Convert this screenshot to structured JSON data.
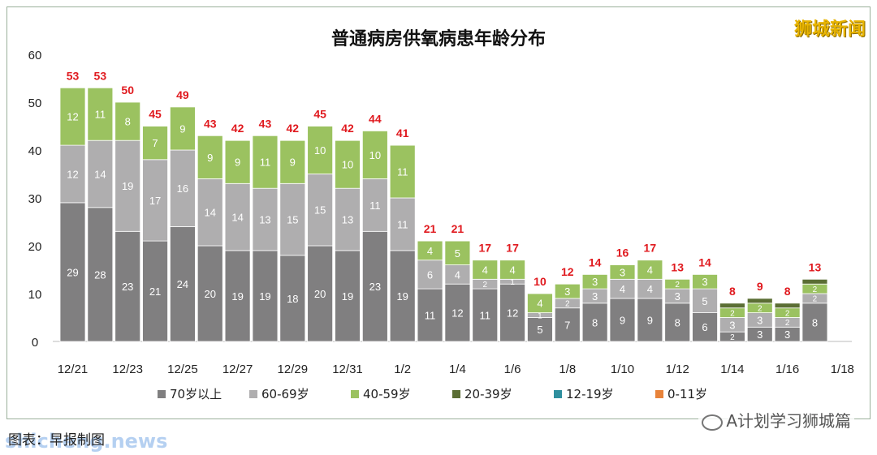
{
  "watermark": "狮城新闻",
  "caption": "图表：早报制图",
  "wechat_label": "A计划学习狮城篇",
  "site_watermark": "shicheng.news",
  "chart_data": {
    "type": "bar",
    "stacked": true,
    "title": "普通病房供氧病患年龄分布",
    "ylim": [
      0,
      60
    ],
    "yticks": [
      0,
      10,
      20,
      30,
      40,
      50,
      60
    ],
    "x_tick_labels": [
      "12/21",
      "12/23",
      "12/25",
      "12/27",
      "12/29",
      "12/31",
      "1/2",
      "1/4",
      "1/6",
      "1/8",
      "1/10",
      "1/12",
      "1/14",
      "1/16",
      "1/18"
    ],
    "categories": [
      "12/21",
      "12/22",
      "12/23",
      "12/24",
      "12/25",
      "12/26",
      "12/27",
      "12/28",
      "12/29",
      "12/30",
      "12/31",
      "1/1",
      "1/2",
      "1/3",
      "1/4",
      "1/5",
      "1/6",
      "1/7",
      "1/8",
      "1/9",
      "1/10",
      "1/11",
      "1/12",
      "1/13",
      "1/14",
      "1/15",
      "1/16",
      "1/17"
    ],
    "totals": [
      53,
      53,
      50,
      45,
      49,
      43,
      42,
      43,
      42,
      45,
      42,
      44,
      41,
      21,
      21,
      17,
      17,
      10,
      12,
      14,
      16,
      17,
      13,
      14,
      8,
      9,
      8,
      13
    ],
    "legend_position": "bottom",
    "series": [
      {
        "name": "70岁以上",
        "color": "#807f80",
        "values": [
          29,
          28,
          23,
          21,
          24,
          20,
          19,
          19,
          18,
          20,
          19,
          23,
          19,
          11,
          12,
          11,
          12,
          5,
          7,
          8,
          9,
          9,
          8,
          6,
          2,
          3,
          3,
          8
        ]
      },
      {
        "name": "60-69岁",
        "color": "#afaeaf",
        "values": [
          12,
          14,
          19,
          17,
          16,
          14,
          14,
          13,
          15,
          15,
          13,
          11,
          11,
          6,
          4,
          2,
          1,
          1,
          2,
          3,
          4,
          4,
          3,
          5,
          3,
          3,
          2,
          2
        ]
      },
      {
        "name": "40-59岁",
        "color": "#9bc260",
        "values": [
          12,
          11,
          8,
          7,
          9,
          9,
          9,
          11,
          9,
          10,
          10,
          10,
          11,
          4,
          5,
          4,
          4,
          4,
          3,
          3,
          3,
          4,
          2,
          3,
          2,
          2,
          2,
          2
        ]
      },
      {
        "name": "20-39岁",
        "color": "#5b6e34",
        "values": [
          0,
          0,
          0,
          0,
          0,
          0,
          0,
          0,
          0,
          0,
          0,
          0,
          0,
          0,
          0,
          0,
          0,
          0,
          0,
          0,
          0,
          0,
          0,
          0,
          1,
          1,
          1,
          1
        ]
      },
      {
        "name": "12-19岁",
        "color": "#2f8f9e",
        "values": [
          0,
          0,
          0,
          0,
          0,
          0,
          0,
          0,
          0,
          0,
          0,
          0,
          0,
          0,
          0,
          0,
          0,
          0,
          0,
          0,
          0,
          0,
          0,
          0,
          0,
          0,
          0,
          0
        ]
      },
      {
        "name": "0-11岁",
        "color": "#e8833a",
        "values": [
          0,
          0,
          0,
          0,
          0,
          0,
          0,
          0,
          0,
          0,
          0,
          0,
          0,
          0,
          0,
          0,
          0,
          0,
          0,
          0,
          0,
          0,
          0,
          0,
          0,
          0,
          0,
          0
        ]
      }
    ],
    "total_label_color": "#e0191e"
  }
}
